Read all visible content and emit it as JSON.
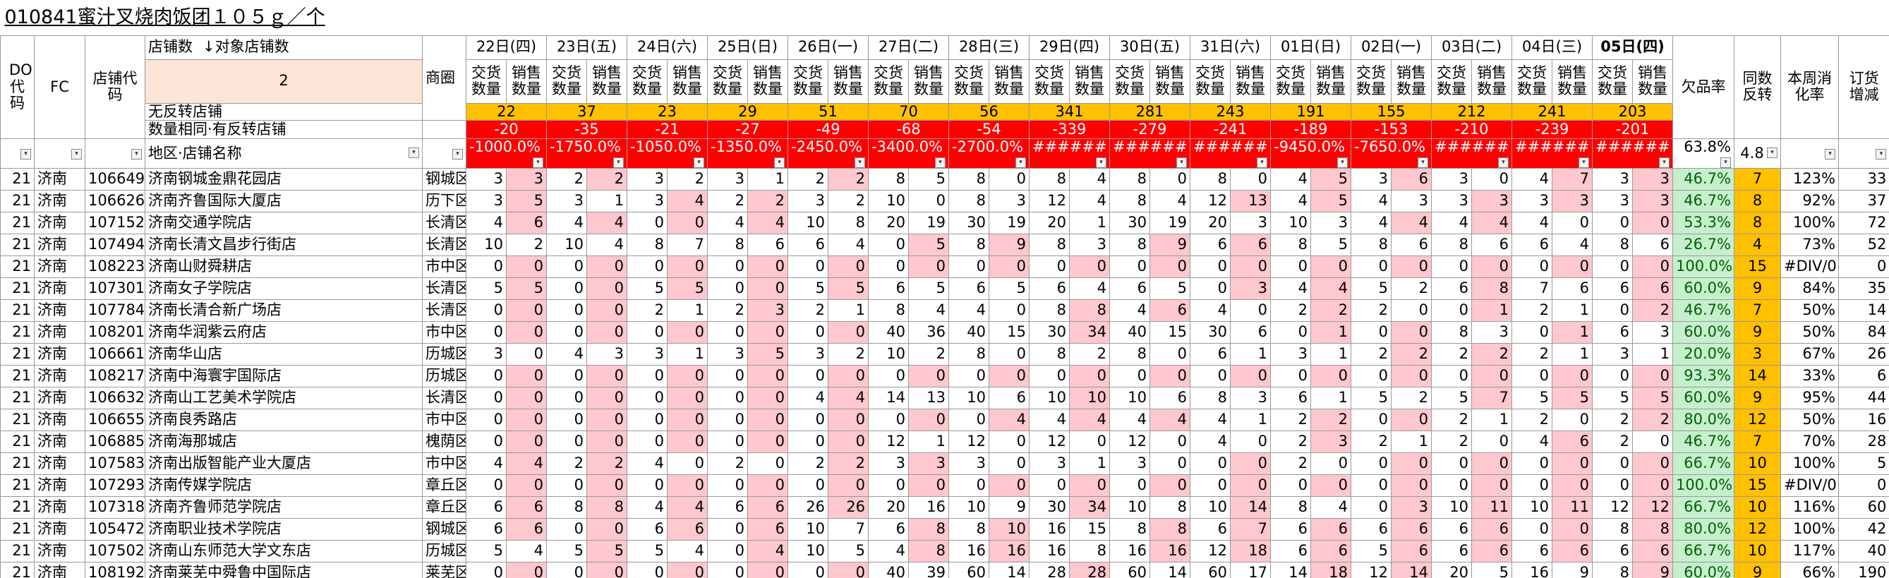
{
  "title": "010841蜜汁叉烧肉饭团１０５ｇ／个",
  "header": {
    "do_code": "DO代码",
    "fc": "FC",
    "store_code": "店铺代码",
    "store_count": "店铺数",
    "target_count": "↓对象店铺数",
    "store_count_value": 2,
    "area": "商圈",
    "delivery": "交货数量",
    "sales": "销售数量",
    "shortage_rate": "欠品率",
    "same_reversal": "同数反转",
    "digestion": "本周消化率",
    "order_change": "订货增减",
    "no_reversal_label": "无反转店铺",
    "same_reversal_label": "数量相同·有反转店铺",
    "region_name": "地区·店铺名称"
  },
  "days": [
    "22日(四)",
    "23日(五)",
    "24日(六)",
    "25日(日)",
    "26日(一)",
    "27日(二)",
    "28日(三)",
    "29日(四)",
    "30日(五)",
    "31日(六)",
    "01日(日)",
    "02日(一)",
    "03日(二)",
    "04日(三)",
    "05日(四)"
  ],
  "no_reversal": [
    22,
    37,
    23,
    29,
    51,
    70,
    56,
    341,
    281,
    243,
    191,
    155,
    212,
    241,
    203
  ],
  "same_reversal": [
    -20,
    -35,
    -21,
    -27,
    -49,
    -68,
    -54,
    -339,
    -279,
    -241,
    -189,
    -153,
    -210,
    -239,
    -201
  ],
  "ratio": [
    "-1000.0%",
    "-1750.0%",
    "-1050.0%",
    "-1350.0%",
    "-2450.0%",
    "-3400.0%",
    "-2700.0%",
    "######",
    "######",
    "######",
    "-9450.0%",
    "-7650.0%",
    "######",
    "######",
    "######"
  ],
  "total_shortage": "63.8%",
  "total_reversal": 4.8,
  "rows": [
    {
      "do": 21,
      "fc": "济南",
      "code": 106649,
      "name": "济南钢城金鼎花园店",
      "area": "钢城区",
      "delivery": [
        3,
        2,
        3,
        3,
        2,
        8,
        8,
        8,
        8,
        8,
        4,
        3,
        3,
        4,
        3
      ],
      "sales": [
        3,
        2,
        2,
        1,
        2,
        5,
        0,
        4,
        0,
        0,
        5,
        6,
        0,
        7,
        3
      ],
      "shortage": "46.7%",
      "reversal": 7,
      "digestion": "123%",
      "order_change": 33
    },
    {
      "do": 21,
      "fc": "济南",
      "code": 106626,
      "name": "济南齐鲁国际大厦店",
      "area": "历下区",
      "delivery": [
        3,
        3,
        3,
        2,
        3,
        10,
        8,
        12,
        8,
        12,
        4,
        4,
        3,
        3,
        3
      ],
      "sales": [
        5,
        1,
        4,
        2,
        2,
        0,
        3,
        4,
        4,
        13,
        5,
        3,
        3,
        3,
        3
      ],
      "shortage": "46.7%",
      "reversal": 8,
      "digestion": "92%",
      "order_change": 37
    },
    {
      "do": 21,
      "fc": "济南",
      "code": 107152,
      "name": "济南交通学院店",
      "area": "长清区",
      "delivery": [
        4,
        4,
        0,
        4,
        10,
        20,
        30,
        20,
        30,
        20,
        10,
        4,
        4,
        4,
        0
      ],
      "sales": [
        6,
        4,
        0,
        4,
        8,
        19,
        19,
        1,
        19,
        3,
        3,
        4,
        4,
        0,
        0
      ],
      "shortage": "53.3%",
      "reversal": 8,
      "digestion": "100%",
      "order_change": 72
    },
    {
      "do": 21,
      "fc": "济南",
      "code": 107494,
      "name": "济南长清文昌步行街店",
      "area": "长清区",
      "delivery": [
        10,
        10,
        8,
        8,
        6,
        0,
        8,
        8,
        8,
        6,
        8,
        8,
        8,
        6,
        8
      ],
      "sales": [
        2,
        4,
        7,
        6,
        4,
        5,
        9,
        3,
        9,
        6,
        5,
        6,
        6,
        4,
        6
      ],
      "shortage": "26.7%",
      "reversal": 4,
      "digestion": "73%",
      "order_change": 52
    },
    {
      "do": 21,
      "fc": "济南",
      "code": 108223,
      "name": "济南山财舜耕店",
      "area": "市中区",
      "delivery": [
        0,
        0,
        0,
        0,
        0,
        0,
        0,
        0,
        0,
        0,
        0,
        0,
        0,
        0,
        0
      ],
      "sales": [
        0,
        0,
        0,
        0,
        0,
        0,
        0,
        0,
        0,
        0,
        0,
        0,
        0,
        0,
        0
      ],
      "shortage": "100.0%",
      "reversal": 15,
      "digestion": "#DIV/0!",
      "order_change": 0
    },
    {
      "do": 21,
      "fc": "济南",
      "code": 107301,
      "name": "济南女子学院店",
      "area": "长清区",
      "delivery": [
        5,
        0,
        5,
        0,
        5,
        6,
        6,
        6,
        6,
        0,
        4,
        5,
        6,
        7,
        6
      ],
      "sales": [
        5,
        0,
        5,
        0,
        5,
        5,
        5,
        4,
        5,
        3,
        4,
        2,
        8,
        6,
        6
      ],
      "shortage": "60.0%",
      "reversal": 9,
      "digestion": "84%",
      "order_change": 35
    },
    {
      "do": 21,
      "fc": "济南",
      "code": 107784,
      "name": "济南长清合新广场店",
      "area": "长清区",
      "delivery": [
        0,
        0,
        2,
        2,
        2,
        8,
        4,
        8,
        4,
        4,
        2,
        2,
        0,
        2,
        0
      ],
      "sales": [
        0,
        0,
        1,
        3,
        1,
        4,
        0,
        8,
        6,
        0,
        2,
        0,
        1,
        1,
        2
      ],
      "shortage": "46.7%",
      "reversal": 7,
      "digestion": "50%",
      "order_change": 14
    },
    {
      "do": 21,
      "fc": "济南",
      "code": 108201,
      "name": "济南华润紫云府店",
      "area": "市中区",
      "delivery": [
        0,
        0,
        0,
        0,
        0,
        40,
        40,
        30,
        40,
        30,
        0,
        0,
        8,
        0,
        6
      ],
      "sales": [
        0,
        0,
        0,
        0,
        0,
        36,
        15,
        34,
        15,
        6,
        1,
        0,
        3,
        1,
        3
      ],
      "shortage": "60.0%",
      "reversal": 9,
      "digestion": "50%",
      "order_change": 84
    },
    {
      "do": 21,
      "fc": "济南",
      "code": 106661,
      "name": "济南华山店",
      "area": "历城区",
      "delivery": [
        3,
        4,
        3,
        3,
        3,
        10,
        8,
        8,
        8,
        6,
        3,
        2,
        2,
        2,
        3
      ],
      "sales": [
        0,
        3,
        1,
        5,
        2,
        2,
        0,
        2,
        0,
        1,
        1,
        2,
        2,
        1,
        1
      ],
      "shortage": "20.0%",
      "reversal": 3,
      "digestion": "67%",
      "order_change": 26
    },
    {
      "do": 21,
      "fc": "济南",
      "code": 108217,
      "name": "济南中海寰宇国际店",
      "area": "历城区",
      "delivery": [
        0,
        0,
        0,
        0,
        0,
        0,
        0,
        0,
        0,
        0,
        0,
        0,
        0,
        0,
        0
      ],
      "sales": [
        0,
        0,
        0,
        0,
        0,
        0,
        0,
        0,
        0,
        0,
        0,
        0,
        0,
        0,
        0
      ],
      "shortage": "93.3%",
      "reversal": 14,
      "digestion": "33%",
      "order_change": 6
    },
    {
      "do": 21,
      "fc": "济南",
      "code": 106632,
      "name": "济南山工艺美术学院店",
      "area": "长清区",
      "delivery": [
        0,
        0,
        0,
        0,
        4,
        14,
        10,
        10,
        10,
        8,
        6,
        5,
        5,
        5,
        5
      ],
      "sales": [
        0,
        0,
        0,
        0,
        4,
        13,
        6,
        10,
        6,
        3,
        1,
        2,
        7,
        5,
        5
      ],
      "shortage": "60.0%",
      "reversal": 9,
      "digestion": "95%",
      "order_change": 44
    },
    {
      "do": 21,
      "fc": "济南",
      "code": 106655,
      "name": "济南良秀路店",
      "area": "市中区",
      "delivery": [
        0,
        0,
        0,
        0,
        0,
        0,
        0,
        4,
        4,
        4,
        2,
        0,
        2,
        2,
        2
      ],
      "sales": [
        0,
        0,
        0,
        0,
        0,
        0,
        4,
        4,
        4,
        1,
        2,
        0,
        1,
        0,
        2
      ],
      "shortage": "80.0%",
      "reversal": 12,
      "digestion": "50%",
      "order_change": 16
    },
    {
      "do": 21,
      "fc": "济南",
      "code": 106885,
      "name": "济南海那城店",
      "area": "槐荫区",
      "delivery": [
        0,
        0,
        0,
        0,
        0,
        12,
        12,
        12,
        12,
        4,
        2,
        2,
        2,
        4,
        2
      ],
      "sales": [
        0,
        0,
        0,
        0,
        0,
        1,
        0,
        0,
        0,
        0,
        3,
        1,
        0,
        6,
        0
      ],
      "shortage": "46.7%",
      "reversal": 7,
      "digestion": "70%",
      "order_change": 28
    },
    {
      "do": 21,
      "fc": "济南",
      "code": 107583,
      "name": "济南出版智能产业大厦店",
      "area": "市中区",
      "delivery": [
        4,
        2,
        4,
        2,
        2,
        3,
        3,
        3,
        3,
        0,
        2,
        0,
        0,
        0,
        0
      ],
      "sales": [
        4,
        2,
        0,
        0,
        2,
        3,
        0,
        1,
        0,
        0,
        0,
        0,
        0,
        0,
        0
      ],
      "shortage": "66.7%",
      "reversal": 10,
      "digestion": "100%",
      "order_change": 5
    },
    {
      "do": 21,
      "fc": "济南",
      "code": 107293,
      "name": "济南传媒学院店",
      "area": "章丘区",
      "delivery": [
        0,
        0,
        0,
        0,
        0,
        0,
        0,
        0,
        0,
        0,
        0,
        0,
        0,
        0,
        0
      ],
      "sales": [
        0,
        0,
        0,
        0,
        0,
        0,
        0,
        0,
        0,
        0,
        0,
        0,
        0,
        0,
        0
      ],
      "shortage": "100.0%",
      "reversal": 15,
      "digestion": "#DIV/0!",
      "order_change": 0
    },
    {
      "do": 21,
      "fc": "济南",
      "code": 107318,
      "name": "济南齐鲁师范学院店",
      "area": "章丘区",
      "delivery": [
        6,
        8,
        4,
        6,
        26,
        20,
        10,
        30,
        10,
        10,
        8,
        0,
        10,
        10,
        12
      ],
      "sales": [
        6,
        8,
        4,
        6,
        26,
        16,
        9,
        34,
        8,
        14,
        4,
        3,
        11,
        11,
        12
      ],
      "shortage": "66.7%",
      "reversal": 10,
      "digestion": "116%",
      "order_change": 60
    },
    {
      "do": 21,
      "fc": "济南",
      "code": 105472,
      "name": "济南职业技术学院店",
      "area": "钢城区",
      "delivery": [
        6,
        0,
        6,
        0,
        10,
        6,
        8,
        16,
        8,
        6,
        6,
        6,
        6,
        0,
        8
      ],
      "sales": [
        6,
        0,
        6,
        6,
        7,
        8,
        10,
        15,
        8,
        7,
        6,
        6,
        6,
        0,
        8
      ],
      "shortage": "80.0%",
      "reversal": 12,
      "digestion": "100%",
      "order_change": 42
    },
    {
      "do": 21,
      "fc": "济南",
      "code": 107502,
      "name": "济南山东师范大学文东店",
      "area": "历城区",
      "delivery": [
        5,
        5,
        5,
        0,
        10,
        4,
        16,
        16,
        16,
        12,
        6,
        5,
        6,
        6,
        6
      ],
      "sales": [
        4,
        5,
        4,
        4,
        5,
        8,
        16,
        8,
        16,
        18,
        6,
        6,
        6,
        6,
        6
      ],
      "shortage": "66.7%",
      "reversal": 10,
      "digestion": "117%",
      "order_change": 40
    },
    {
      "do": 21,
      "fc": "济南",
      "code": 108192,
      "name": "济南莱芜中舜鲁中国际店",
      "area": "莱芜区",
      "delivery": [
        0,
        0,
        0,
        0,
        0,
        40,
        60,
        28,
        60,
        60,
        14,
        12,
        20,
        16,
        8
      ],
      "sales": [
        0,
        0,
        0,
        0,
        0,
        39,
        14,
        28,
        14,
        17,
        18,
        14,
        5,
        9,
        9
      ],
      "shortage": "60.0%",
      "reversal": 9,
      "digestion": "66%",
      "order_change": 190
    }
  ]
}
